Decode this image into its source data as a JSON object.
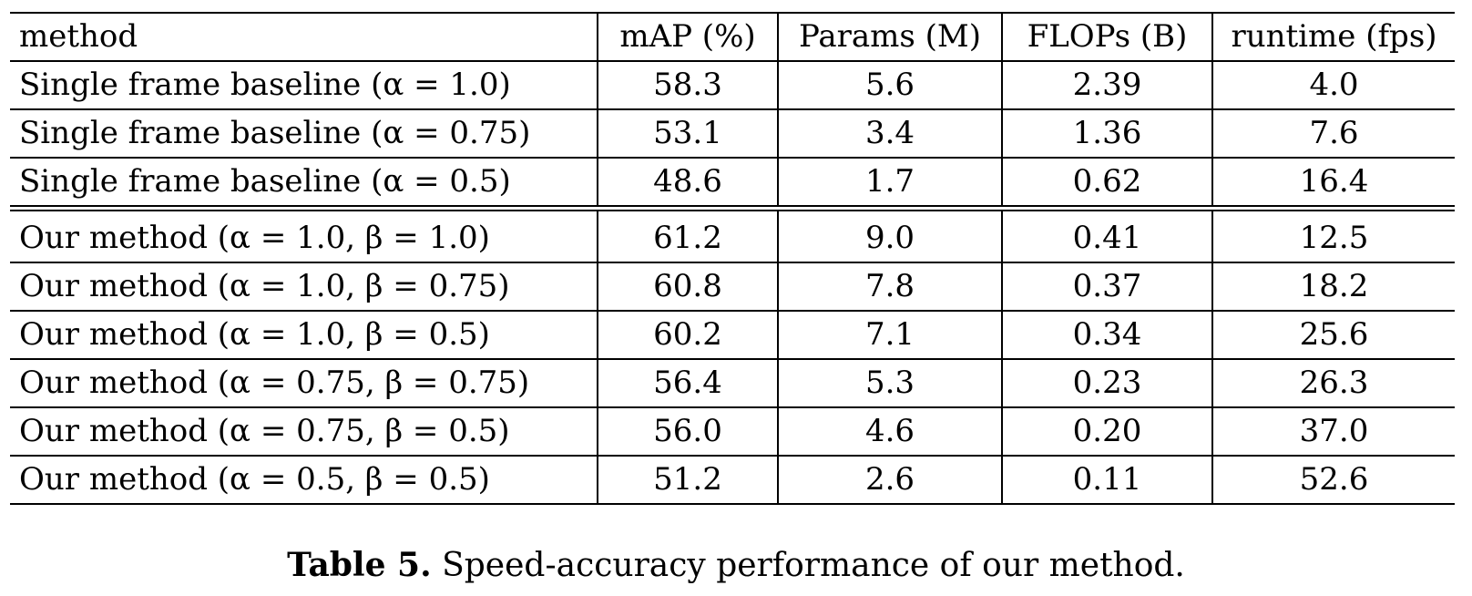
{
  "table": {
    "columns": [
      "method",
      "mAP (%)",
      "Params (M)",
      "FLOPs (B)",
      "runtime (fps)"
    ],
    "group1": [
      {
        "method": "Single frame baseline (α = 1.0)",
        "map": "58.3",
        "params": "5.6",
        "flops": "2.39",
        "runtime": "4.0"
      },
      {
        "method": "Single frame baseline (α = 0.75)",
        "map": "53.1",
        "params": "3.4",
        "flops": "1.36",
        "runtime": "7.6"
      },
      {
        "method": "Single frame baseline (α = 0.5)",
        "map": "48.6",
        "params": "1.7",
        "flops": "0.62",
        "runtime": "16.4"
      }
    ],
    "group2": [
      {
        "method": "Our method (α = 1.0, β = 1.0)",
        "map": "61.2",
        "params": "9.0",
        "flops": "0.41",
        "runtime": "12.5"
      },
      {
        "method": "Our method (α = 1.0, β = 0.75)",
        "map": "60.8",
        "params": "7.8",
        "flops": "0.37",
        "runtime": "18.2"
      },
      {
        "method": "Our method (α = 1.0, β = 0.5)",
        "map": "60.2",
        "params": "7.1",
        "flops": "0.34",
        "runtime": "25.6"
      },
      {
        "method": "Our method (α = 0.75, β = 0.75)",
        "map": "56.4",
        "params": "5.3",
        "flops": "0.23",
        "runtime": "26.3"
      },
      {
        "method": "Our method (α = 0.75, β = 0.5)",
        "map": "56.0",
        "params": "4.6",
        "flops": "0.20",
        "runtime": "37.0"
      },
      {
        "method": "Our method (α = 0.5, β = 0.5)",
        "map": "51.2",
        "params": "2.6",
        "flops": "0.11",
        "runtime": "52.6"
      }
    ]
  },
  "caption": {
    "label": "Table 5.",
    "text": "Speed-accuracy performance of our method."
  }
}
